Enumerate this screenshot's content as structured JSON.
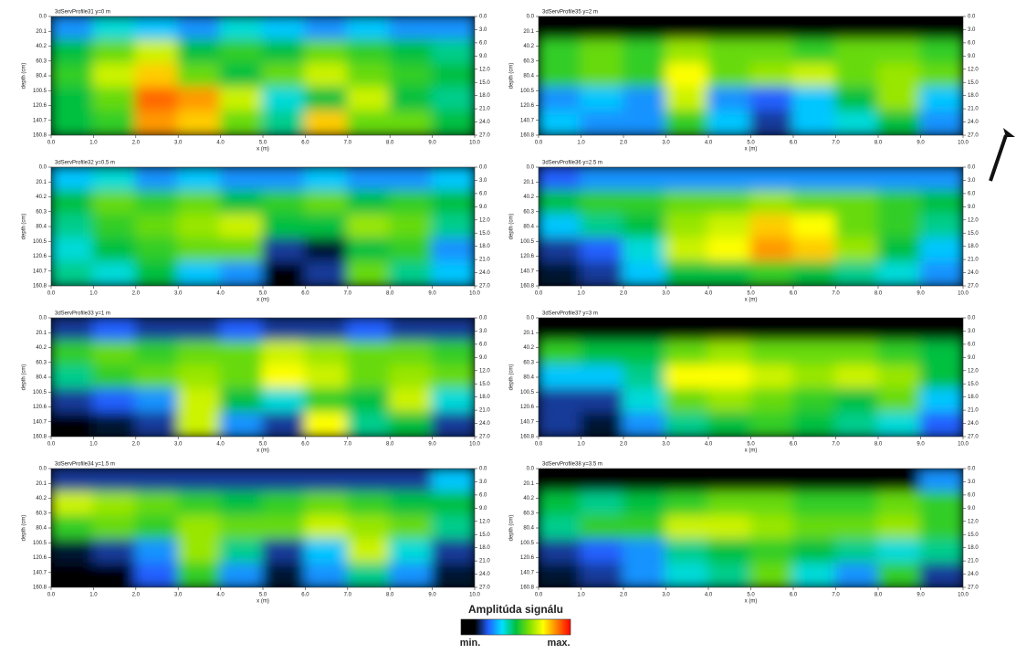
{
  "axes": {
    "xlabel": "x (m)",
    "ylabel": "depth (cm)",
    "xlim": [
      0,
      10
    ],
    "ylim": [
      0,
      160.8
    ],
    "y2lim": [
      0,
      27
    ],
    "xticks": [
      {
        "value": 0,
        "label": "0.0"
      },
      {
        "value": 1,
        "label": "1.0"
      },
      {
        "value": 2,
        "label": "2.0"
      },
      {
        "value": 3,
        "label": "3.0"
      },
      {
        "value": 4,
        "label": "4.0"
      },
      {
        "value": 5,
        "label": "5.0"
      },
      {
        "value": 6,
        "label": "6.0"
      },
      {
        "value": 7,
        "label": "7.0"
      },
      {
        "value": 8,
        "label": "8.0"
      },
      {
        "value": 9,
        "label": "9.0"
      },
      {
        "value": 10,
        "label": "10.0"
      }
    ],
    "yticks": [
      {
        "value": 0,
        "label": "0.0"
      },
      20.1,
      40.2,
      60.3,
      80.4,
      100.5,
      120.6,
      140.7,
      160.8
    ],
    "y2ticks": [
      {
        "value": 0,
        "label": "0.0"
      },
      {
        "value": 3,
        "label": "3.0"
      },
      {
        "value": 6,
        "label": "6.0"
      },
      {
        "value": 9,
        "label": "9.0"
      },
      {
        "value": 12,
        "label": "12.0"
      },
      {
        "value": 15,
        "label": "15.0"
      },
      {
        "value": 18,
        "label": "18.0"
      },
      {
        "value": 21,
        "label": "21.0"
      },
      {
        "value": 24,
        "label": "24.0"
      },
      {
        "value": 27,
        "label": "27.0"
      }
    ]
  },
  "chart_data": [
    {
      "type": "heatmap",
      "title": "3dServProfile31   y=0 m",
      "values": [
        [
          0.3,
          0.4,
          0.35,
          0.3,
          0.4,
          0.35,
          0.3,
          0.35,
          0.3,
          0.3
        ],
        [
          0.5,
          0.6,
          0.7,
          0.5,
          0.55,
          0.5,
          0.6,
          0.55,
          0.5,
          0.45
        ],
        [
          0.55,
          0.7,
          0.8,
          0.6,
          0.5,
          0.6,
          0.7,
          0.6,
          0.55,
          0.5
        ],
        [
          0.5,
          0.6,
          0.9,
          0.85,
          0.7,
          0.4,
          0.5,
          0.7,
          0.5,
          0.45
        ],
        [
          0.5,
          0.55,
          0.85,
          0.8,
          0.6,
          0.45,
          0.8,
          0.6,
          0.6,
          0.5
        ]
      ]
    },
    {
      "type": "heatmap",
      "title": "3dServProfile32   y=0.5 m",
      "values": [
        [
          0.35,
          0.4,
          0.3,
          0.35,
          0.3,
          0.3,
          0.35,
          0.3,
          0.3,
          0.35
        ],
        [
          0.5,
          0.6,
          0.55,
          0.6,
          0.5,
          0.55,
          0.6,
          0.5,
          0.55,
          0.5
        ],
        [
          0.45,
          0.55,
          0.6,
          0.65,
          0.7,
          0.5,
          0.5,
          0.65,
          0.6,
          0.45
        ],
        [
          0.4,
          0.5,
          0.55,
          0.6,
          0.6,
          0.2,
          0.15,
          0.5,
          0.55,
          0.3
        ],
        [
          0.45,
          0.4,
          0.5,
          0.35,
          0.3,
          0.1,
          0.2,
          0.6,
          0.45,
          0.35
        ]
      ]
    },
    {
      "type": "heatmap",
      "title": "3dServProfile33   y=1 m",
      "values": [
        [
          0.2,
          0.25,
          0.2,
          0.2,
          0.25,
          0.2,
          0.2,
          0.25,
          0.2,
          0.2
        ],
        [
          0.55,
          0.6,
          0.55,
          0.6,
          0.6,
          0.7,
          0.65,
          0.6,
          0.6,
          0.55
        ],
        [
          0.45,
          0.55,
          0.6,
          0.65,
          0.6,
          0.75,
          0.7,
          0.6,
          0.65,
          0.6
        ],
        [
          0.2,
          0.25,
          0.3,
          0.7,
          0.5,
          0.4,
          0.55,
          0.5,
          0.7,
          0.4
        ],
        [
          0.1,
          0.15,
          0.2,
          0.7,
          0.3,
          0.2,
          0.75,
          0.45,
          0.5,
          0.2
        ]
      ]
    },
    {
      "type": "heatmap",
      "title": "3dServProfile34   y=1.5 m",
      "values": [
        [
          0.2,
          0.2,
          0.2,
          0.2,
          0.2,
          0.2,
          0.2,
          0.2,
          0.2,
          0.35
        ],
        [
          0.7,
          0.65,
          0.6,
          0.55,
          0.5,
          0.55,
          0.6,
          0.55,
          0.5,
          0.5
        ],
        [
          0.55,
          0.6,
          0.55,
          0.65,
          0.6,
          0.6,
          0.7,
          0.65,
          0.6,
          0.45
        ],
        [
          0.15,
          0.2,
          0.3,
          0.65,
          0.45,
          0.2,
          0.35,
          0.7,
          0.4,
          0.2
        ],
        [
          0.1,
          0.1,
          0.25,
          0.55,
          0.3,
          0.15,
          0.3,
          0.45,
          0.3,
          0.15
        ]
      ]
    },
    {
      "type": "heatmap",
      "title": "3dServProfile35   y=2 m",
      "values": [
        [
          0.1,
          0.1,
          0.1,
          0.1,
          0.1,
          0.1,
          0.1,
          0.1,
          0.1,
          0.1
        ],
        [
          0.55,
          0.6,
          0.55,
          0.65,
          0.6,
          0.6,
          0.55,
          0.6,
          0.6,
          0.55
        ],
        [
          0.55,
          0.6,
          0.55,
          0.75,
          0.6,
          0.65,
          0.7,
          0.6,
          0.65,
          0.6
        ],
        [
          0.3,
          0.35,
          0.3,
          0.7,
          0.3,
          0.25,
          0.35,
          0.5,
          0.65,
          0.35
        ],
        [
          0.35,
          0.3,
          0.3,
          0.55,
          0.35,
          0.2,
          0.35,
          0.4,
          0.5,
          0.3
        ]
      ]
    },
    {
      "type": "heatmap",
      "title": "3dServProfile36   y=2.5 m",
      "values": [
        [
          0.25,
          0.3,
          0.3,
          0.3,
          0.3,
          0.3,
          0.3,
          0.3,
          0.3,
          0.3
        ],
        [
          0.5,
          0.55,
          0.55,
          0.6,
          0.6,
          0.65,
          0.6,
          0.6,
          0.55,
          0.5
        ],
        [
          0.35,
          0.45,
          0.5,
          0.65,
          0.7,
          0.8,
          0.75,
          0.6,
          0.55,
          0.45
        ],
        [
          0.2,
          0.25,
          0.4,
          0.7,
          0.75,
          0.85,
          0.8,
          0.65,
          0.5,
          0.35
        ],
        [
          0.15,
          0.2,
          0.35,
          0.5,
          0.5,
          0.55,
          0.5,
          0.45,
          0.4,
          0.3
        ]
      ]
    },
    {
      "type": "heatmap",
      "title": "3dServProfile37   y=3 m",
      "values": [
        [
          0.1,
          0.1,
          0.1,
          0.1,
          0.1,
          0.1,
          0.1,
          0.1,
          0.1,
          0.1
        ],
        [
          0.55,
          0.5,
          0.5,
          0.6,
          0.65,
          0.6,
          0.6,
          0.6,
          0.55,
          0.5
        ],
        [
          0.35,
          0.35,
          0.45,
          0.75,
          0.75,
          0.7,
          0.65,
          0.7,
          0.65,
          0.5
        ],
        [
          0.2,
          0.2,
          0.4,
          0.6,
          0.65,
          0.6,
          0.55,
          0.5,
          0.6,
          0.35
        ],
        [
          0.2,
          0.15,
          0.3,
          0.45,
          0.5,
          0.55,
          0.5,
          0.45,
          0.4,
          0.25
        ]
      ]
    },
    {
      "type": "heatmap",
      "title": "3dServProfile38   y=3.5 m",
      "values": [
        [
          0.1,
          0.1,
          0.1,
          0.1,
          0.1,
          0.1,
          0.1,
          0.1,
          0.1,
          0.3
        ],
        [
          0.5,
          0.45,
          0.5,
          0.55,
          0.6,
          0.6,
          0.55,
          0.55,
          0.6,
          0.55
        ],
        [
          0.45,
          0.55,
          0.55,
          0.7,
          0.7,
          0.65,
          0.6,
          0.6,
          0.65,
          0.55
        ],
        [
          0.2,
          0.25,
          0.3,
          0.45,
          0.5,
          0.55,
          0.5,
          0.45,
          0.4,
          0.45
        ],
        [
          0.15,
          0.2,
          0.3,
          0.4,
          0.45,
          0.6,
          0.4,
          0.3,
          0.55,
          0.2
        ]
      ]
    }
  ],
  "colorbar": {
    "title": "Amplitúda signálu",
    "min_label": "min.",
    "max_label": "max.",
    "colors": [
      "#000000",
      "#000000",
      "#2060ff",
      "#00e0ff",
      "#00c040",
      "#80e000",
      "#ffff00",
      "#ff8000",
      "#ff0000"
    ]
  }
}
